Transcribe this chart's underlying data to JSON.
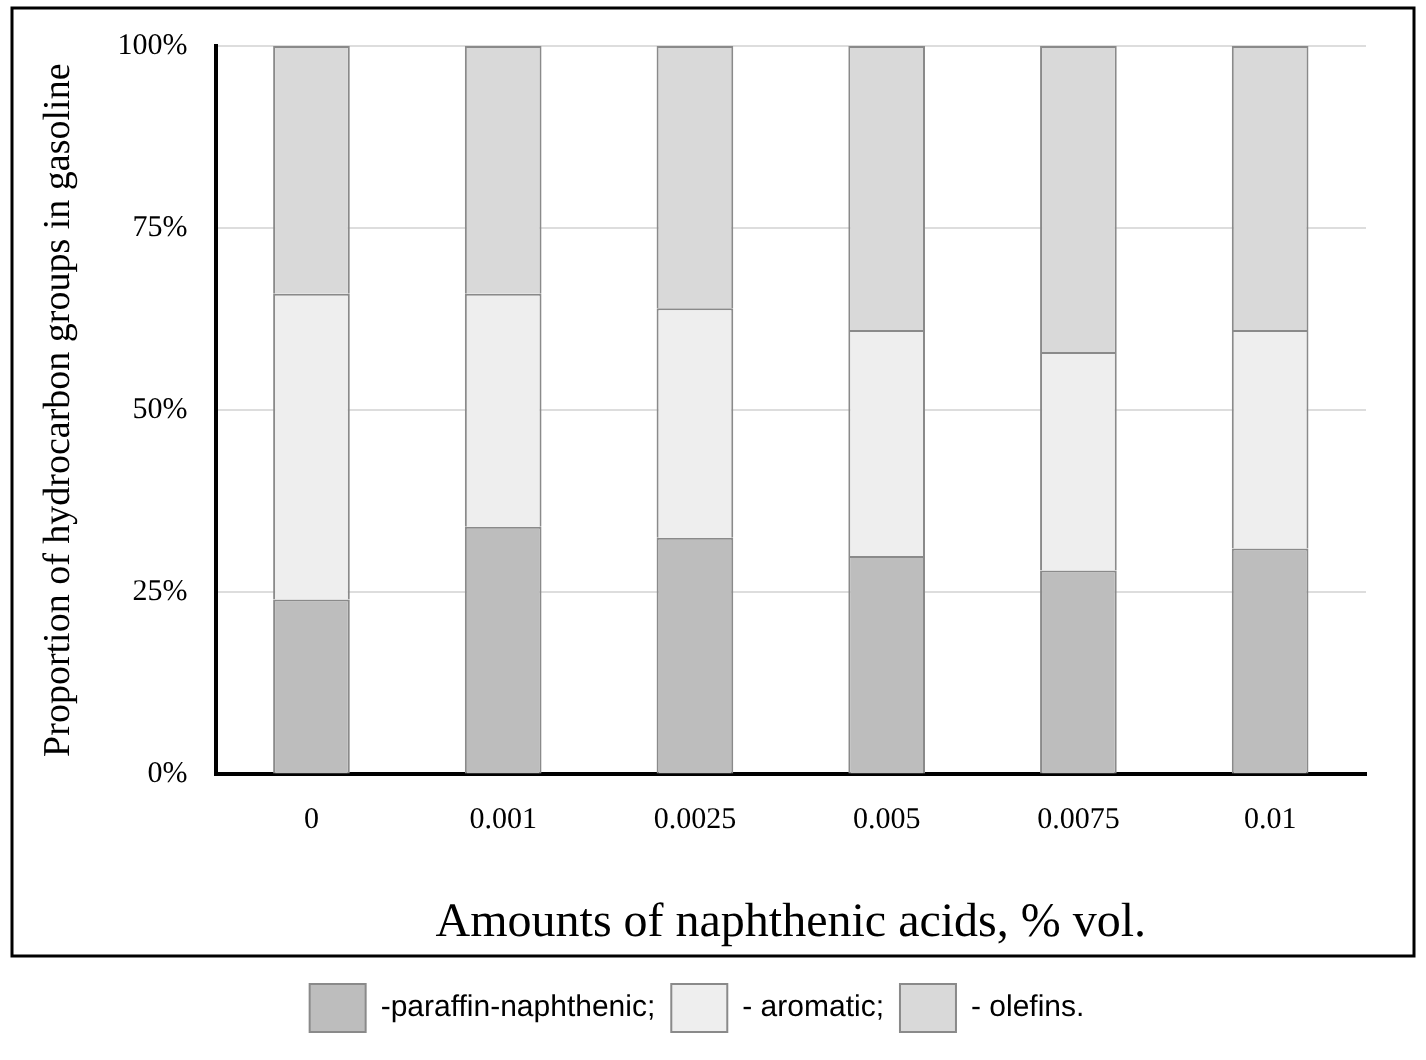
{
  "chart_data": {
    "type": "bar",
    "stacked": true,
    "xlabel": "Amounts of naphthenic acids, % vol.",
    "ylabel": "Proportion of hydrocarbon groups in gasoline",
    "categories": [
      "0",
      "0.001",
      "0.0025",
      "0.005",
      "0.0075",
      "0.01"
    ],
    "series": [
      {
        "name": "-paraffin-naphthenic;",
        "color": "#bdbdbd",
        "values": [
          24,
          34,
          32.5,
          30,
          28,
          31
        ]
      },
      {
        "name": "- aromatic;",
        "color": "#eeeeee",
        "values": [
          42,
          32,
          31.5,
          31,
          30,
          30
        ]
      },
      {
        "name": "- olefins.",
        "color": "#d9d9d9",
        "values": [
          34,
          34,
          36,
          39,
          42,
          39
        ]
      }
    ],
    "ylim": [
      0,
      100
    ],
    "yticks": [
      {
        "value": 0,
        "label": "0%"
      },
      {
        "value": 25,
        "label": "25%"
      },
      {
        "value": 50,
        "label": "50%"
      },
      {
        "value": 75,
        "label": "75%"
      },
      {
        "value": 100,
        "label": "100%"
      }
    ],
    "grid": "y",
    "legend": "bottom"
  }
}
